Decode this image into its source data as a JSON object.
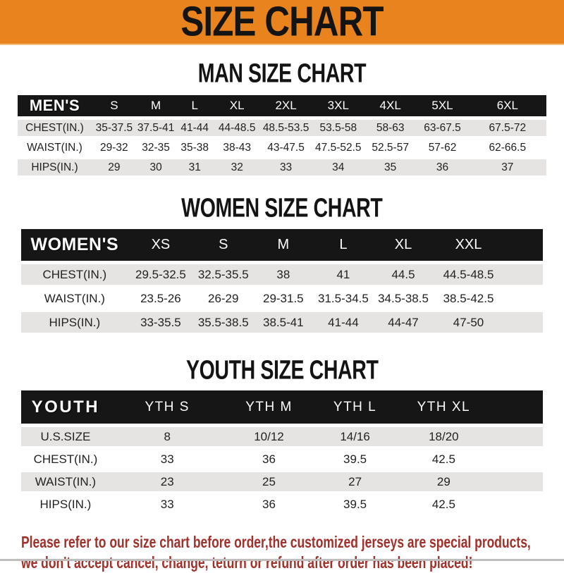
{
  "banner": {
    "title": "SIZE CHART"
  },
  "colors": {
    "banner_bg": "#E8831E",
    "banner_text": "#141414",
    "table_header_bg": "#161616",
    "table_header_text": "#FDFDFD",
    "row_shaded": "#E5E4E2",
    "row_plain": "#FFFFFF",
    "footer_text": "#A2302A"
  },
  "chart_data": [
    {
      "type": "table",
      "title": "MAN SIZE CHART",
      "header_label": "MEN'S",
      "columns": [
        "MEN'S",
        "S",
        "M",
        "L",
        "XL",
        "2XL",
        "3XL",
        "4XL",
        "5XL",
        "6XL"
      ],
      "rows": [
        {
          "label": "CHEST(IN.)",
          "values": [
            "35-37.5",
            "37.5-41",
            "41-44",
            "44-48.5",
            "48.5-53.5",
            "53.5-58",
            "58-63",
            "63-67.5",
            "67.5-72"
          ]
        },
        {
          "label": "WAIST(IN.)",
          "values": [
            "29-32",
            "32-35",
            "35-38",
            "38-43",
            "43-47.5",
            "47.5-52.5",
            "52.5-57",
            "57-62",
            "62-66.5"
          ]
        },
        {
          "label": "HIPS(IN.)",
          "values": [
            "29",
            "30",
            "31",
            "32",
            "33",
            "34",
            "35",
            "36",
            "37"
          ]
        }
      ]
    },
    {
      "type": "table",
      "title": "WOMEN SIZE CHART",
      "header_label": "WOMEN'S",
      "columns": [
        "WOMEN'S",
        "XS",
        "S",
        "M",
        "L",
        "XL",
        "XXL"
      ],
      "rows": [
        {
          "label": "CHEST(IN.)",
          "values": [
            "29.5-32.5",
            "32.5-35.5",
            "38",
            "41",
            "44.5",
            "44.5-48.5"
          ]
        },
        {
          "label": "WAIST(IN.)",
          "values": [
            "23.5-26",
            "26-29",
            "29-31.5",
            "31.5-34.5",
            "34.5-38.5",
            "38.5-42.5"
          ]
        },
        {
          "label": "HIPS(IN.)",
          "values": [
            "33-35.5",
            "35.5-38.5",
            "38.5-41",
            "41-44",
            "44-47",
            "47-50"
          ]
        }
      ]
    },
    {
      "type": "table",
      "title": "YOUTH SIZE CHART",
      "header_label": "YOUTH",
      "columns": [
        "YOUTH",
        "YTH S",
        "YTH M",
        "YTH L",
        "YTH XL"
      ],
      "rows": [
        {
          "label": "U.S.SIZE",
          "values": [
            "8",
            "10/12",
            "14/16",
            "18/20"
          ]
        },
        {
          "label": "CHEST(IN.)",
          "values": [
            "33",
            "36",
            "39.5",
            "42.5"
          ]
        },
        {
          "label": "WAIST(IN.)",
          "values": [
            "23",
            "25",
            "27",
            "29"
          ]
        },
        {
          "label": "HIPS(IN.)",
          "values": [
            "33",
            "36",
            "39.5",
            "42.5"
          ]
        }
      ]
    }
  ],
  "footer": {
    "line1": "Please refer to our size chart before order,the customized jerseys are special products,",
    "line2": "we don't accept cancel, change, teturn or refund after order has been placed!"
  }
}
